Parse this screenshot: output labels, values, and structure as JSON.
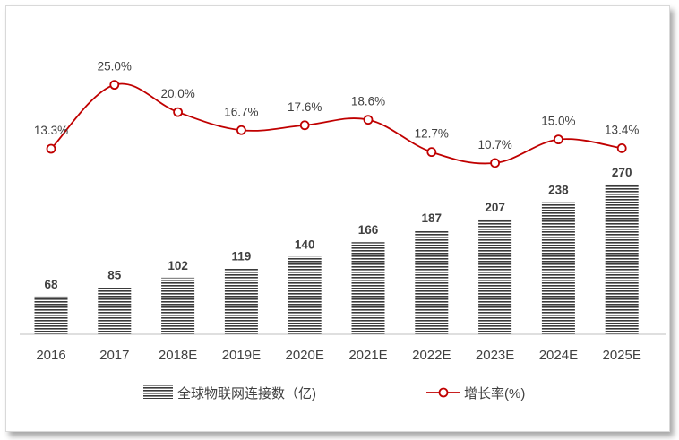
{
  "chart_data": {
    "type": "bar+line",
    "categories": [
      "2016",
      "2017",
      "2018E",
      "2019E",
      "2020E",
      "2021E",
      "2022E",
      "2023E",
      "2024E",
      "2025E"
    ],
    "series": [
      {
        "name": "全球物联网连接数（亿)",
        "type": "bar",
        "values": [
          68,
          85,
          102,
          119,
          140,
          166,
          187,
          207,
          238,
          270
        ],
        "labels": [
          "68",
          "85",
          "102",
          "119",
          "140",
          "166",
          "187",
          "207",
          "238",
          "270"
        ],
        "color": "#404040"
      },
      {
        "name": "增长率(%)",
        "type": "line",
        "values": [
          13.3,
          25.0,
          20.0,
          16.7,
          17.6,
          18.6,
          12.7,
          10.7,
          15.0,
          13.4
        ],
        "labels": [
          "13.3%",
          "25.0%",
          "20.0%",
          "16.7%",
          "17.6%",
          "18.6%",
          "12.7%",
          "10.7%",
          "15.0%",
          "13.4%"
        ],
        "color": "#c00000"
      }
    ],
    "grid": false,
    "legend_position": "bottom"
  }
}
